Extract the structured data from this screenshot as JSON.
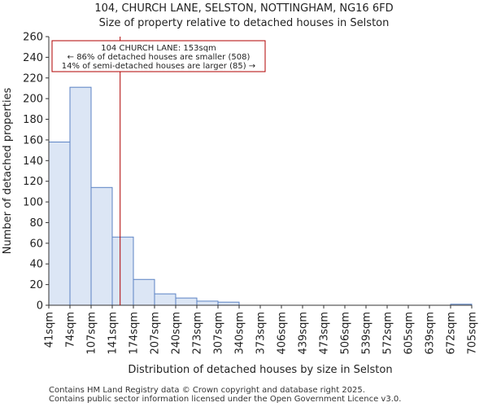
{
  "chart_data": {
    "type": "bar",
    "title": "104, CHURCH LANE, SELSTON, NOTTINGHAM, NG16 6FD",
    "subtitle": "Size of property relative to detached houses in Selston",
    "xlabel": "Distribution of detached houses by size in Selston",
    "ylabel": "Number of detached properties",
    "bin_edges": [
      41,
      74,
      107,
      141,
      174,
      207,
      240,
      273,
      307,
      340,
      373,
      406,
      439,
      473,
      506,
      539,
      572,
      605,
      639,
      672,
      705
    ],
    "x_tick_labels": [
      "41sqm",
      "74sqm",
      "107sqm",
      "141sqm",
      "174sqm",
      "207sqm",
      "240sqm",
      "273sqm",
      "307sqm",
      "340sqm",
      "373sqm",
      "406sqm",
      "439sqm",
      "473sqm",
      "506sqm",
      "539sqm",
      "572sqm",
      "605sqm",
      "639sqm",
      "672sqm",
      "705sqm"
    ],
    "values": [
      158,
      211,
      114,
      66,
      25,
      11,
      7,
      4,
      3,
      0,
      0,
      0,
      0,
      0,
      0,
      0,
      0,
      0,
      0,
      1
    ],
    "ylim": [
      0,
      260
    ],
    "y_ticks": [
      0,
      20,
      40,
      60,
      80,
      100,
      120,
      140,
      160,
      180,
      200,
      220,
      240,
      260
    ],
    "marker_value": 153,
    "annotation": [
      "104 CHURCH LANE: 153sqm",
      "← 86% of detached houses are smaller (508)",
      "14% of semi-detached houses are larger (85) →"
    ],
    "colors": {
      "bar_fill": "#dce6f5",
      "bar_stroke": "#5b83c4",
      "marker": "#b00000"
    }
  },
  "footer": {
    "line1": "Contains HM Land Registry data © Crown copyright and database right 2025.",
    "line2": "Contains public sector information licensed under the Open Government Licence v3.0."
  }
}
